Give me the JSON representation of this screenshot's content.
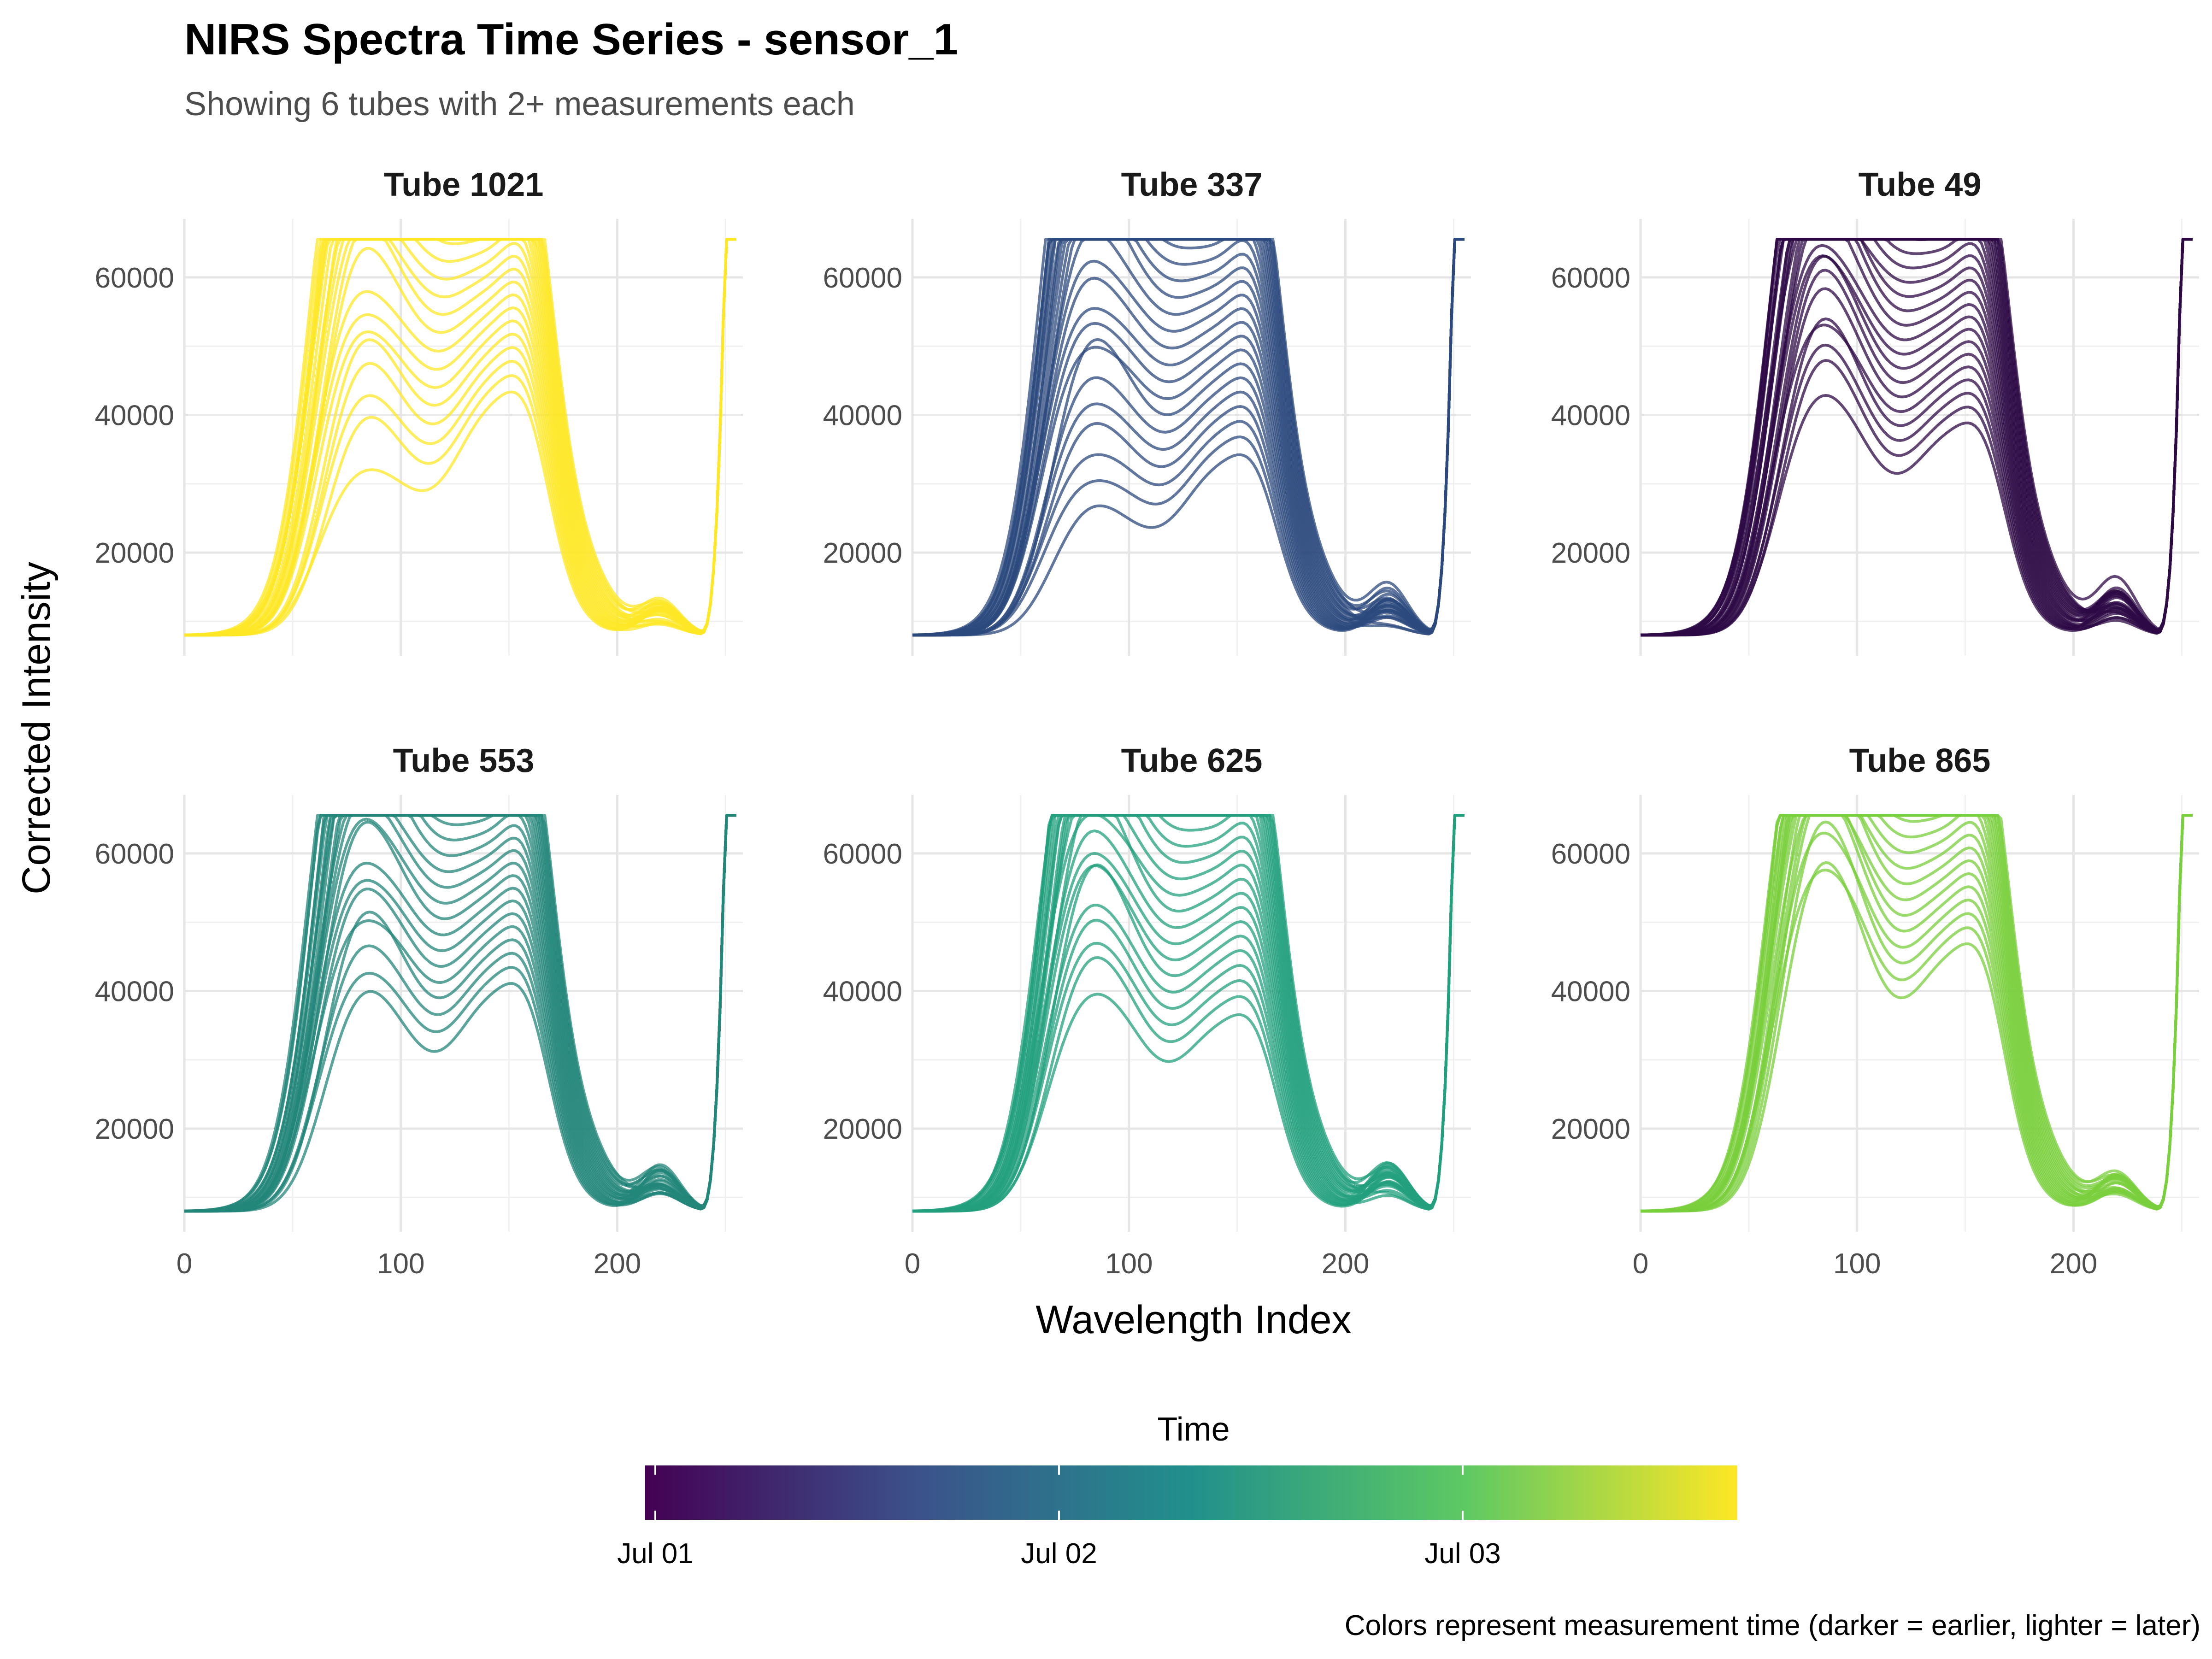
{
  "title": "NIRS Spectra Time Series - sensor_1",
  "subtitle": "Showing 6 tubes with 2+ measurements each",
  "caption": "Colors represent measurement time (darker = earlier, lighter = later)",
  "chart_data": {
    "type": "line",
    "xlabel": "Wavelength Index",
    "ylabel": "Corrected Intensity",
    "xlim": [
      0,
      258
    ],
    "ylim": [
      5000,
      68500
    ],
    "x_ticks": [
      "0",
      "100",
      "200"
    ],
    "y_ticks": [
      "20000",
      "40000",
      "60000"
    ],
    "saturation": 65535,
    "grid": true,
    "legend": {
      "title": "Time",
      "position": "bottom",
      "type": "colorbar",
      "labels": [
        "Jul 01",
        "Jul 02",
        "Jul 03"
      ],
      "colors": [
        "#440154",
        "#3b528b",
        "#21908c",
        "#5dc963",
        "#fde725"
      ]
    },
    "panels": [
      {
        "label": "Tube 1021",
        "color": "#fde725",
        "peak1_range": [
          27000,
          65535
        ],
        "peak2_range": [
          39000,
          65535
        ],
        "tail_range": [
          9000,
          13000
        ],
        "lines": 22
      },
      {
        "label": "Tube 337",
        "color": "#2c4a7e",
        "peak1_range": [
          22000,
          65535
        ],
        "peak2_range": [
          31000,
          65535
        ],
        "tail_range": [
          9000,
          15000
        ],
        "lines": 26
      },
      {
        "label": "Tube 49",
        "color": "#2d0a46",
        "peak1_range": [
          35000,
          65535
        ],
        "peak2_range": [
          35000,
          65535
        ],
        "tail_range": [
          10000,
          16000
        ],
        "lines": 26
      },
      {
        "label": "Tube 553",
        "color": "#23867a",
        "peak1_range": [
          32000,
          65535
        ],
        "peak2_range": [
          37000,
          65535
        ],
        "tail_range": [
          10000,
          15000
        ],
        "lines": 24
      },
      {
        "label": "Tube 625",
        "color": "#23a07e",
        "peak1_range": [
          33000,
          65535
        ],
        "peak2_range": [
          33000,
          65535
        ],
        "tail_range": [
          10000,
          15000
        ],
        "lines": 24
      },
      {
        "label": "Tube 865",
        "color": "#79cf3c",
        "peak1_range": [
          46000,
          65535
        ],
        "peak2_range": [
          42000,
          65535
        ],
        "tail_range": [
          10000,
          14000
        ],
        "lines": 20
      }
    ]
  }
}
